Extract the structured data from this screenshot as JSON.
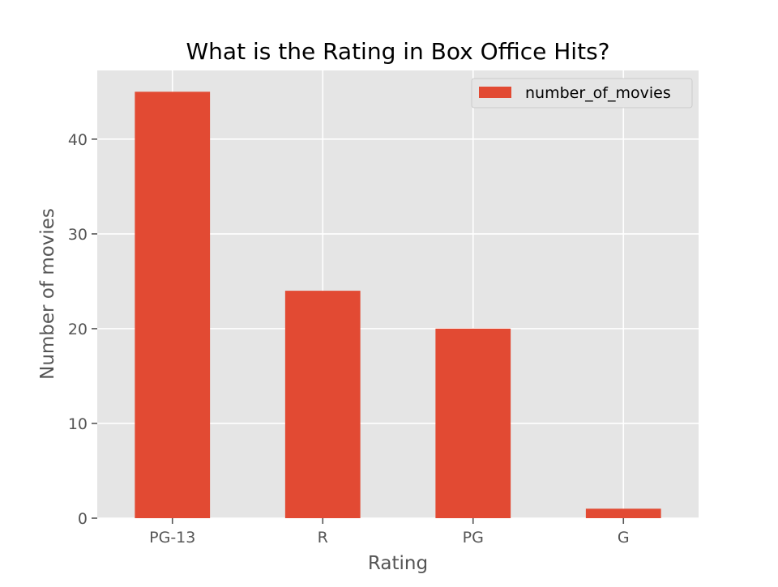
{
  "chart_data": {
    "type": "bar",
    "title": "What is the Rating in Box Office Hits?",
    "xlabel": "Rating",
    "ylabel": "Number of movies",
    "categories": [
      "PG-13",
      "R",
      "PG",
      "G"
    ],
    "series": [
      {
        "name": "number_of_movies",
        "values": [
          45,
          24,
          20,
          1
        ]
      }
    ],
    "ylim": [
      0,
      47.25
    ],
    "yticks": [
      0,
      10,
      20,
      30,
      40
    ],
    "grid": true,
    "legend_position": "top-right",
    "colors": {
      "bar": "#E24A33",
      "plot_background": "#E5E5E5",
      "grid": "#FFFFFF",
      "text": "#555555",
      "title": "#000000"
    }
  }
}
